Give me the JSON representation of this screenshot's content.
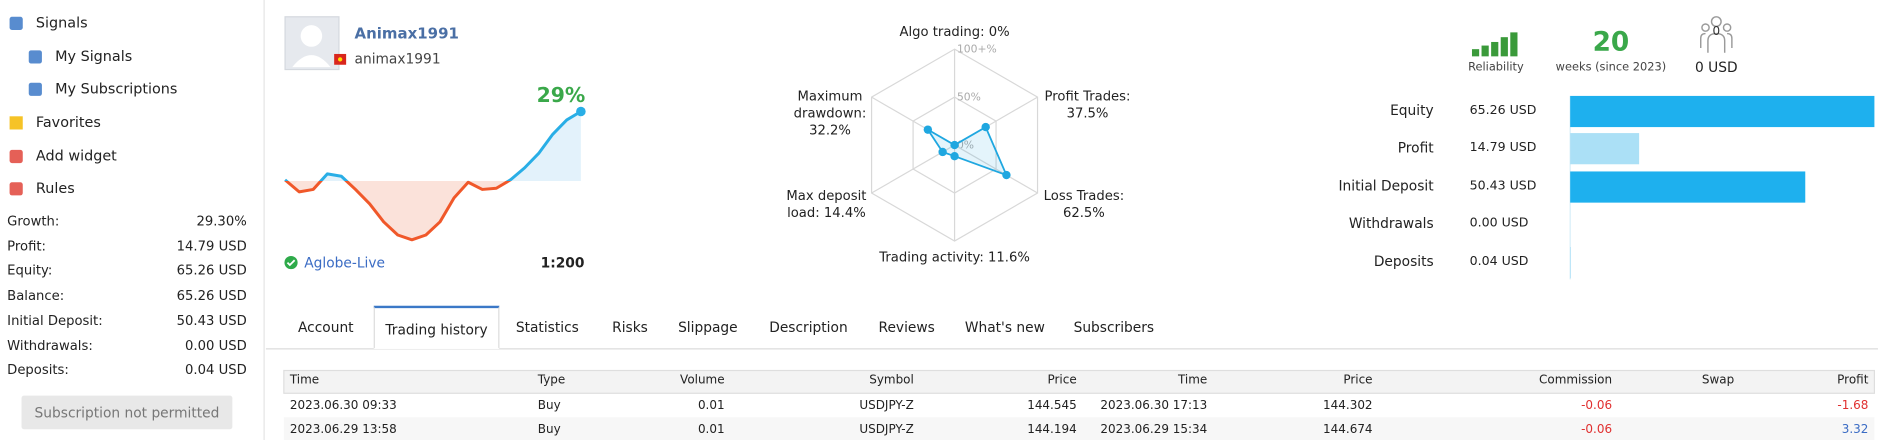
{
  "sidebar": {
    "nav": [
      "Signals",
      "My Signals",
      "My Subscriptions",
      "Favorites",
      "Add widget",
      "Rules"
    ],
    "stats": [
      {
        "label": "Growth:",
        "value": "29.30%"
      },
      {
        "label": "Profit:",
        "value": "14.79 USD"
      },
      {
        "label": "Equity:",
        "value": "65.26 USD"
      },
      {
        "label": "Balance:",
        "value": "65.26 USD"
      },
      {
        "label": "Initial Deposit:",
        "value": "50.43 USD"
      },
      {
        "label": "Withdrawals:",
        "value": "0.00 USD"
      },
      {
        "label": "Deposits:",
        "value": "0.04 USD"
      }
    ],
    "button": "Subscription not permitted"
  },
  "profile": {
    "name": "Animax1991",
    "login": "animax1991",
    "growth_label": "29%",
    "broker": "Aglobe-Live",
    "leverage": "1:200"
  },
  "summary": {
    "reliability": "Reliability",
    "weeks": "20",
    "weeks_label": "weeks (since 2023)",
    "subscribers": "0",
    "funds": "0 USD"
  },
  "chart_data": [
    {
      "type": "line",
      "values": [
        0.5,
        -4.5,
        -3.5,
        3,
        2,
        -3.5,
        -9.5,
        -17,
        -22.5,
        -24.5,
        -22.5,
        -17,
        -7,
        -0.5,
        -3.5,
        -3,
        0.5,
        5.5,
        11.5,
        19.5,
        25.5,
        29
      ],
      "ylim": [
        -27,
        35.5
      ],
      "color": "#29aee6",
      "negative_color": "#f0582a",
      "area_color": "#e3f2fb",
      "negative_area_color": "#fbe2da"
    },
    {
      "type": "radar",
      "categories": [
        "Algo trading:",
        "Profit Trades:",
        "Loss Trades:",
        "Trading activity:",
        "Max deposit load:",
        "Maximum drawdown:"
      ],
      "values": [
        0,
        37.5,
        62.5,
        11.6,
        14.4,
        32.2
      ],
      "value_labels": [
        "0%",
        "37.5%",
        "62.5%",
        "11.6%",
        "14.4%",
        "32.2%"
      ],
      "ylim": [
        0,
        100
      ],
      "yticks": [
        {
          "value": 0,
          "label": "0%"
        },
        {
          "value": 50,
          "label": "50%"
        },
        {
          "value": 100,
          "label": "100+%"
        }
      ],
      "color": "#1fa7e0"
    },
    {
      "type": "bar",
      "orientation": "horizontal",
      "categories": [
        "Equity",
        "Profit",
        "Initial Deposit",
        "Withdrawals",
        "Deposits"
      ],
      "values": [
        65.26,
        14.79,
        50.43,
        0,
        0.04
      ],
      "value_labels": [
        "65.26 USD",
        "14.79 USD",
        "50.43 USD",
        "0.00 USD",
        "0.04 USD"
      ],
      "colors": [
        "#1eb0ee",
        "#abe0f6",
        "#1eb0ee",
        "#1eb0ee",
        "#1eb0ee"
      ],
      "xlim": [
        0,
        65.26
      ]
    }
  ],
  "tabs": {
    "items": [
      "Account",
      "Trading history",
      "Statistics",
      "Risks",
      "Slippage",
      "Description",
      "Reviews",
      "What's new",
      "Subscribers"
    ],
    "active": 1
  },
  "table": {
    "header": [
      "Time",
      "Type",
      "Volume",
      "Symbol",
      "Price",
      "Time",
      "Price",
      "Commission",
      "Swap",
      "Profit"
    ],
    "rows": [
      [
        "2023.06.30 09:33",
        "Buy",
        "0.01",
        "USDJPY-Z",
        "144.545",
        "2023.06.30 17:13",
        "144.302",
        "-0.06",
        "",
        "-1.68"
      ],
      [
        "2023.06.29 13:58",
        "Buy",
        "0.01",
        "USDJPY-Z",
        "144.194",
        "2023.06.29 15:34",
        "144.674",
        "-0.06",
        "",
        "3.32"
      ]
    ]
  }
}
